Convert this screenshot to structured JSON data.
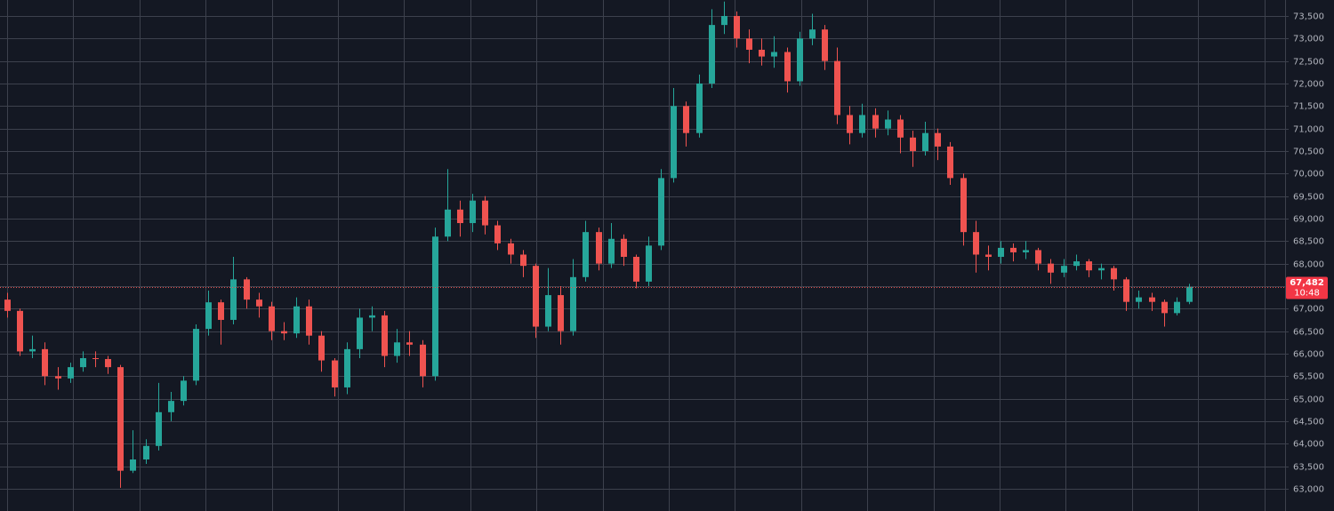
{
  "chart_data": {
    "type": "candlestick",
    "ylim": [
      62505,
      73855
    ],
    "yticks": [
      {
        "value": 63000,
        "label": "63,000"
      },
      {
        "value": 63500,
        "label": "63,500"
      },
      {
        "value": 64000,
        "label": "64,000"
      },
      {
        "value": 64500,
        "label": "64,500"
      },
      {
        "value": 65000,
        "label": "65,000"
      },
      {
        "value": 65500,
        "label": "65,500"
      },
      {
        "value": 66000,
        "label": "66,000"
      },
      {
        "value": 66500,
        "label": "66,500"
      },
      {
        "value": 67000,
        "label": "67,000"
      },
      {
        "value": 67500,
        "label": "67,500"
      },
      {
        "value": 68000,
        "label": "68,000"
      },
      {
        "value": 68500,
        "label": "68,500"
      },
      {
        "value": 69000,
        "label": "69,000"
      },
      {
        "value": 69500,
        "label": "69,500"
      },
      {
        "value": 70000,
        "label": "70,000"
      },
      {
        "value": 70500,
        "label": "70,500"
      },
      {
        "value": 71000,
        "label": "71,000"
      },
      {
        "value": 71500,
        "label": "71,500"
      },
      {
        "value": 72000,
        "label": "72,000"
      },
      {
        "value": 72500,
        "label": "72,500"
      },
      {
        "value": 73000,
        "label": "73,000"
      },
      {
        "value": 73500,
        "label": "73,500"
      }
    ],
    "grid": true,
    "up_color": "#26a69a",
    "down_color": "#ef5350",
    "last_price": {
      "value": 67482,
      "label": "67,482"
    },
    "countdown": "10:48",
    "open": [
      67200,
      66950,
      66050,
      66100,
      65500,
      65450,
      65700,
      65900,
      65880,
      65700,
      63400,
      63650,
      63950,
      64700,
      64950,
      65400,
      66550,
      67140,
      66750,
      67650,
      67200,
      67050,
      66500,
      66450,
      67050,
      66400,
      65850,
      65250,
      66100,
      66800,
      66850,
      65950,
      66250,
      66200,
      65500,
      68600,
      69200,
      68900,
      69400,
      68850,
      68450,
      68200,
      67950,
      66600,
      67300,
      66500,
      67700,
      68700,
      68000,
      68550,
      68150,
      67600,
      68400,
      69900,
      71500,
      70900,
      72000,
      73300,
      73500,
      73000,
      72750,
      72600,
      72700,
      72050,
      73000,
      73200,
      72500,
      71300,
      70900,
      71300,
      71000,
      71200,
      70800,
      70500,
      70900,
      70600,
      69900,
      68700,
      68200,
      68150,
      68350,
      68250,
      68300,
      68000,
      67800,
      67950,
      68050,
      67850,
      67900,
      67650,
      67150,
      67250,
      67150,
      66900,
      67150
    ],
    "high": [
      67350,
      67000,
      66400,
      66250,
      65700,
      65800,
      66050,
      66050,
      65950,
      65750,
      64300,
      64100,
      65350,
      65150,
      65500,
      66650,
      67400,
      67200,
      68150,
      67700,
      67350,
      67150,
      66700,
      67250,
      67200,
      66500,
      65900,
      66250,
      67000,
      67050,
      66950,
      66550,
      66500,
      66300,
      68800,
      70100,
      69400,
      69550,
      69500,
      68950,
      68550,
      68300,
      68000,
      67900,
      67500,
      68100,
      68950,
      68800,
      68900,
      68650,
      68200,
      68600,
      70100,
      71900,
      71600,
      72200,
      73650,
      73820,
      73600,
      73200,
      73000,
      73050,
      72800,
      73150,
      73550,
      73300,
      72800,
      71500,
      71550,
      71450,
      71400,
      71300,
      70950,
      71150,
      71000,
      70700,
      70000,
      68950,
      68400,
      68500,
      68450,
      68500,
      68350,
      68100,
      68100,
      68200,
      68100,
      68000,
      67950,
      67700,
      67400,
      67350,
      67200,
      67250,
      67550
    ],
    "low": [
      66800,
      65950,
      65900,
      65300,
      65200,
      65350,
      65600,
      65700,
      65550,
      63020,
      63350,
      63550,
      63850,
      64500,
      64850,
      65300,
      66400,
      66200,
      66650,
      67000,
      66800,
      66300,
      66300,
      66350,
      66200,
      65600,
      65050,
      65100,
      65900,
      66500,
      65700,
      65800,
      65950,
      65250,
      65400,
      68500,
      68600,
      68700,
      68650,
      68300,
      68000,
      67700,
      66350,
      66500,
      66200,
      66400,
      67600,
      67850,
      67900,
      67950,
      67450,
      67500,
      68300,
      69800,
      70600,
      70800,
      71900,
      73100,
      72800,
      72450,
      72400,
      72350,
      71800,
      71950,
      72850,
      72300,
      71100,
      70650,
      70800,
      70800,
      70850,
      70450,
      70150,
      70400,
      70300,
      69750,
      68400,
      67800,
      67850,
      68000,
      68050,
      68100,
      67850,
      67550,
      67700,
      67850,
      67700,
      67650,
      67400,
      66950,
      67000,
      66950,
      66600,
      66850,
      67100
    ],
    "close": [
      66950,
      66050,
      66100,
      65500,
      65450,
      65700,
      65900,
      65880,
      65700,
      63400,
      63650,
      63950,
      64700,
      64950,
      65400,
      66550,
      67140,
      66750,
      67650,
      67200,
      67050,
      66500,
      66450,
      67050,
      66400,
      65850,
      65250,
      66100,
      66800,
      66850,
      65950,
      66250,
      66200,
      65500,
      68600,
      69200,
      68900,
      69400,
      68850,
      68450,
      68200,
      67950,
      66600,
      67300,
      66500,
      67700,
      68700,
      68000,
      68550,
      68150,
      67600,
      68400,
      69900,
      71500,
      70900,
      72000,
      73300,
      73500,
      73000,
      72750,
      72600,
      72700,
      72050,
      73000,
      73200,
      72500,
      71300,
      70900,
      71300,
      71000,
      71200,
      70800,
      70500,
      70900,
      70600,
      69900,
      68700,
      68200,
      68150,
      68350,
      68250,
      68300,
      68000,
      67800,
      67950,
      68050,
      67850,
      67900,
      67650,
      67150,
      67250,
      67150,
      66900,
      67150,
      67482
    ]
  }
}
